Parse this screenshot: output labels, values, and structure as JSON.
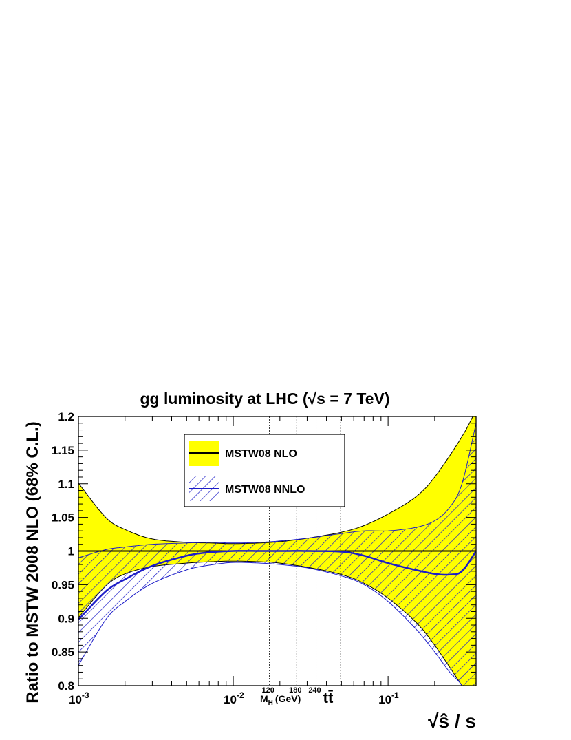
{
  "chart_data": {
    "type": "area",
    "title": "gg luminosity at LHC (√s = 7 TeV)",
    "xlabel": "√ŝ / s",
    "ylabel": "Ratio to MSTW 2008 NLO (68% C.L.)",
    "x_scale": "log",
    "xlim": [
      0.001,
      0.37
    ],
    "ylim": [
      0.8,
      1.2
    ],
    "grid": false,
    "legend_position": "top-center",
    "y_ticks": [
      {
        "value": 0.8,
        "label": "0.8"
      },
      {
        "value": 0.85,
        "label": "0.85"
      },
      {
        "value": 0.9,
        "label": "0.9"
      },
      {
        "value": 0.95,
        "label": "0.95"
      },
      {
        "value": 1.0,
        "label": "1"
      },
      {
        "value": 1.05,
        "label": "1.05"
      },
      {
        "value": 1.1,
        "label": "1.1"
      },
      {
        "value": 1.15,
        "label": "1.15"
      },
      {
        "value": 1.2,
        "label": "1.2"
      }
    ],
    "x_ticks": [
      {
        "value": 0.001,
        "base": "10",
        "exp": "-3"
      },
      {
        "value": 0.01,
        "base": "10",
        "exp": "-2"
      },
      {
        "value": 0.1,
        "base": "10",
        "exp": "-1"
      }
    ],
    "markers": [
      {
        "x": 0.01714,
        "label": "120"
      },
      {
        "x": 0.02571,
        "label": "180"
      },
      {
        "x": 0.03429,
        "label": "240"
      },
      {
        "x": 0.04943,
        "label": ""
      }
    ],
    "marker_axis_label": "M",
    "marker_axis_sub": "H",
    "marker_axis_unit": "(GeV)",
    "ttbar_label": "tt̄",
    "colors": {
      "nlo_fill": "#ffff00",
      "nnlo_line": "#1c1cc8",
      "axis": "#000000"
    },
    "series": [
      {
        "name": "MSTW08 NLO",
        "style": "solid-fill",
        "x": [
          0.001,
          0.0015,
          0.002,
          0.003,
          0.005,
          0.007,
          0.01,
          0.015,
          0.02,
          0.03,
          0.05,
          0.07,
          0.1,
          0.15,
          0.2,
          0.3,
          0.37
        ],
        "central": [
          1,
          1,
          1,
          1,
          1,
          1,
          1,
          1,
          1,
          1,
          1,
          1,
          1,
          1,
          1,
          1,
          1
        ],
        "upper": [
          1.101,
          1.05,
          1.032,
          1.018,
          1.013,
          1.012,
          1.011,
          1.012,
          1.014,
          1.019,
          1.028,
          1.038,
          1.055,
          1.08,
          1.11,
          1.17,
          1.21
        ],
        "lower": [
          0.901,
          0.948,
          0.966,
          0.977,
          0.982,
          0.984,
          0.985,
          0.984,
          0.982,
          0.976,
          0.965,
          0.952,
          0.93,
          0.895,
          0.86,
          0.8,
          0.77
        ]
      },
      {
        "name": "MSTW08 NNLO",
        "style": "hatched",
        "x": [
          0.001,
          0.0015,
          0.002,
          0.003,
          0.005,
          0.007,
          0.01,
          0.015,
          0.02,
          0.03,
          0.05,
          0.07,
          0.1,
          0.15,
          0.2,
          0.25,
          0.3,
          0.37
        ],
        "central": [
          0.898,
          0.94,
          0.958,
          0.978,
          0.993,
          0.998,
          1.0,
          1.0,
          1.0,
          1.0,
          0.999,
          0.993,
          0.982,
          0.972,
          0.966,
          0.965,
          0.97,
          1.0
        ],
        "upper": [
          0.99,
          1.002,
          1.006,
          1.01,
          1.012,
          1.013,
          1.012,
          1.013,
          1.015,
          1.019,
          1.026,
          1.03,
          1.03,
          1.035,
          1.045,
          1.065,
          1.1,
          1.19
        ],
        "lower": [
          0.83,
          0.898,
          0.925,
          0.952,
          0.972,
          0.979,
          0.983,
          0.982,
          0.98,
          0.975,
          0.963,
          0.95,
          0.925,
          0.885,
          0.85,
          0.82,
          0.8,
          0.76
        ]
      }
    ]
  }
}
